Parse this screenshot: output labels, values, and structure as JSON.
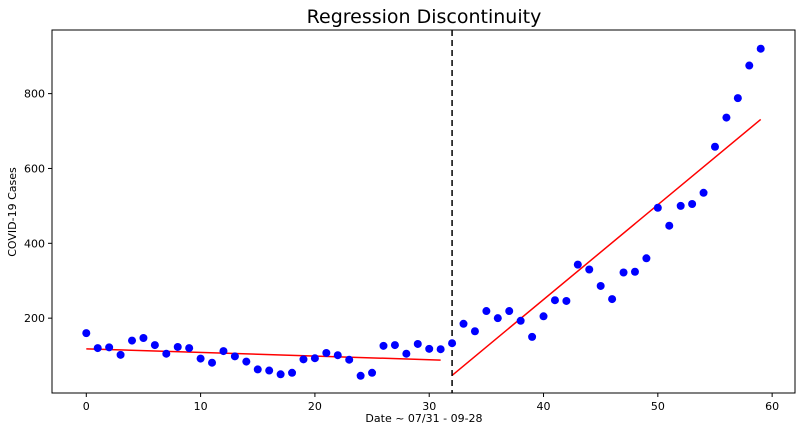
{
  "chart_data": {
    "type": "scatter",
    "title": "Regression Discontinuity",
    "xlabel": "Date ~ 07/31 - 09-28",
    "ylabel": "COVID-19 Cases",
    "xlim": [
      -3,
      62
    ],
    "ylim": [
      0,
      970
    ],
    "xticks": [
      0,
      10,
      20,
      30,
      40,
      50,
      60
    ],
    "yticks": [
      200,
      400,
      600,
      800
    ],
    "grid": false,
    "cutoff_x": 32,
    "points": {
      "x": [
        0,
        1,
        2,
        3,
        4,
        5,
        6,
        7,
        8,
        9,
        10,
        11,
        12,
        13,
        14,
        15,
        16,
        17,
        18,
        19,
        20,
        21,
        22,
        23,
        24,
        25,
        26,
        27,
        28,
        29,
        30,
        31,
        32,
        33,
        34,
        35,
        36,
        37,
        38,
        39,
        40,
        41,
        42,
        43,
        44,
        45,
        46,
        47,
        48,
        49,
        50,
        51,
        52,
        53,
        54,
        55,
        56,
        57,
        58,
        59
      ],
      "y": [
        160,
        120,
        122,
        102,
        140,
        147,
        128,
        105,
        123,
        120,
        92,
        81,
        112,
        98,
        84,
        63,
        60,
        50,
        54,
        90,
        93,
        107,
        101,
        89,
        46,
        54,
        126,
        128,
        105,
        131,
        118,
        117,
        133,
        185,
        165,
        219,
        200,
        219,
        193,
        150,
        205,
        248,
        246,
        343,
        330,
        286,
        251,
        322,
        324,
        360,
        495,
        447,
        500,
        505,
        535,
        658,
        736,
        788,
        875,
        920
      ]
    },
    "fit_lines": [
      {
        "x": [
          0,
          31
        ],
        "y": [
          118,
          88
        ]
      },
      {
        "x": [
          32,
          59
        ],
        "y": [
          47,
          731
        ]
      }
    ],
    "colors": {
      "points": "#0000ff",
      "fit": "#ff0000",
      "cutoff": "#000000"
    }
  }
}
